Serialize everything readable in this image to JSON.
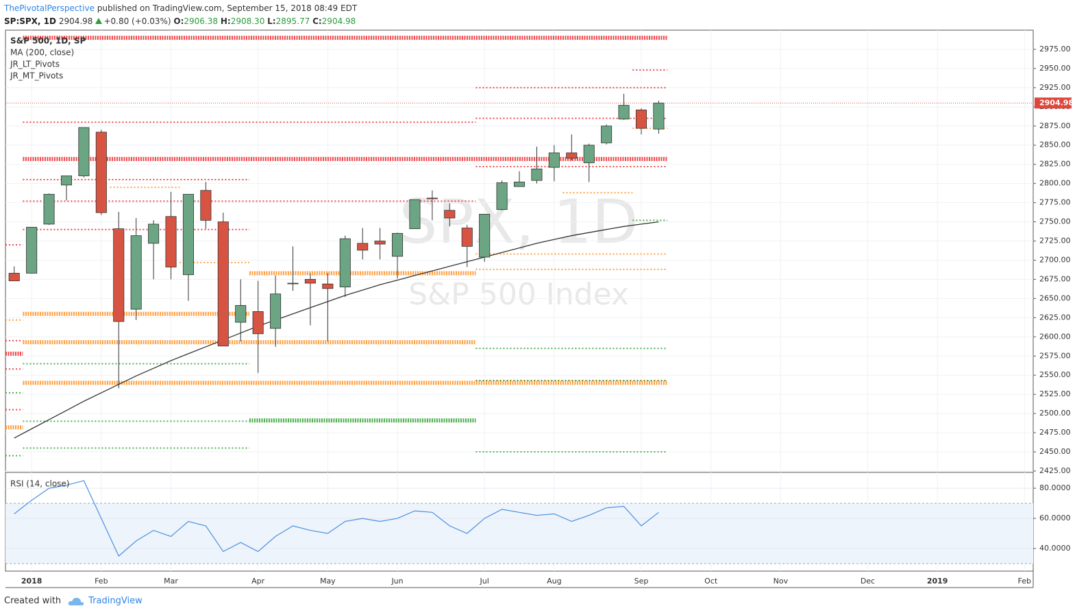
{
  "header": {
    "author": "ThePivotalPerspective",
    "published": "published on TradingView.com, September 15, 2018 08:49 EDT",
    "symbol": "SP:SPX, 1D",
    "last": "2904.98",
    "change": "+0.80 (+0.03%)",
    "open_label": "O:",
    "open": "2906.38",
    "high_label": "H:",
    "high": "2908.30",
    "low_label": "L:",
    "low": "2895.77",
    "close_label": "C:",
    "close": "2904.98"
  },
  "chart_data": {
    "type": "candlestick",
    "legend": [
      "S&P 500, 1D, SP",
      "MA (200, close)",
      "JR_LT_Pivots",
      "JR_MT_Pivots"
    ],
    "watermark": "SPX, 1D",
    "watermark_subtitle": "S&P 500 Index",
    "categories": [
      null,
      "2018",
      null,
      null,
      null,
      "Feb",
      null,
      null,
      null,
      "Mar",
      null,
      null,
      null,
      null,
      "Apr",
      null,
      null,
      null,
      "May",
      null,
      null,
      null,
      "Jun",
      null,
      null,
      null,
      null,
      "Jul",
      null,
      null,
      null,
      "Aug",
      null,
      null,
      null,
      null,
      "Sep",
      null,
      null,
      null,
      "Oct",
      null,
      null,
      null,
      "Nov",
      null,
      null,
      null,
      null,
      "Dec",
      null,
      null,
      null,
      "2019",
      null,
      null,
      null,
      null,
      "Feb"
    ],
    "open": [
      2683,
      2683,
      2747,
      2798,
      2810,
      2867,
      2741,
      2636,
      2722,
      2757,
      2681,
      2791,
      2750,
      2619,
      2633,
      2611,
      2670,
      2675,
      2669,
      2665,
      2722,
      2725,
      2705,
      2741,
      2781,
      2765,
      2742,
      2704,
      2766,
      2796,
      2804,
      2821,
      2840,
      2827,
      2853,
      2884,
      2896,
      2871,
      null,
      null,
      null,
      null,
      null,
      null,
      null,
      null,
      null,
      null,
      null,
      null,
      null,
      null,
      null,
      null,
      null,
      null,
      null,
      null,
      null
    ],
    "high": [
      2692,
      2743,
      2787,
      2810,
      2873,
      2870,
      2763,
      2755,
      2752,
      2789,
      2786,
      2802,
      2762,
      2675,
      2673,
      2680,
      2718,
      2683,
      2683,
      2732,
      2742,
      2742,
      2736,
      2779,
      2791,
      2774,
      2746,
      2760,
      2804,
      2816,
      2848,
      2850,
      2864,
      2852,
      2877,
      2917,
      2898,
      2908,
      null,
      null,
      null,
      null,
      null,
      null,
      null,
      null,
      null,
      null,
      null,
      null,
      null,
      null,
      null,
      null,
      null,
      null,
      null,
      null,
      null
    ],
    "low": [
      2673,
      2683,
      2746,
      2778,
      2808,
      2759,
      2533,
      2622,
      2675,
      2675,
      2647,
      2741,
      2588,
      2594,
      2553,
      2587,
      2660,
      2615,
      2594,
      2652,
      2701,
      2701,
      2676,
      2741,
      2752,
      2744,
      2691,
      2698,
      2765,
      2796,
      2800,
      2803,
      2830,
      2802,
      2851,
      2883,
      2864,
      2865,
      null,
      null,
      null,
      null,
      null,
      null,
      null,
      null,
      null,
      null,
      null,
      null,
      null,
      null,
      null,
      null,
      null,
      null,
      null,
      null,
      null
    ],
    "close": [
      2673,
      2743,
      2786,
      2810,
      2873,
      2762,
      2620,
      2732,
      2747,
      2691,
      2786,
      2752,
      2588,
      2641,
      2604,
      2656,
      2670,
      2670,
      2663,
      2728,
      2713,
      2721,
      2735,
      2779,
      2780,
      2755,
      2718,
      2760,
      2801,
      2802,
      2819,
      2840,
      2833,
      2850,
      2875,
      2902,
      2872,
      2905,
      null,
      null,
      null,
      null,
      null,
      null,
      null,
      null,
      null,
      null,
      null,
      null,
      null,
      null,
      null,
      null,
      null,
      null,
      null,
      null,
      null
    ],
    "up_color": "#6ba583",
    "down_color": "#d75442",
    "ma": {
      "color": "#333333",
      "values": [
        2468,
        2480,
        2492,
        2504,
        2516,
        2527,
        2538,
        2549,
        2559,
        2569,
        2578,
        2587,
        2596,
        2605,
        2614,
        2622,
        2630,
        2638,
        2646,
        2654,
        2661,
        2668,
        2674,
        2680,
        2686,
        2692,
        2698,
        2704,
        2710,
        2716,
        2722,
        2727,
        2732,
        2736,
        2740,
        2744,
        2747,
        2750,
        null,
        null,
        null,
        null,
        null,
        null,
        null,
        null,
        null,
        null,
        null,
        null,
        null,
        null,
        null,
        null,
        null,
        null,
        null,
        null,
        null
      ]
    },
    "last_price": 2904.98,
    "last_price_color": "#e0463b",
    "ylim": [
      2425,
      3000
    ],
    "yticks": [
      {
        "value": 2425,
        "label": "2425.00"
      },
      {
        "value": 2450,
        "label": "2450.00"
      },
      {
        "value": 2475,
        "label": "2475.00"
      },
      {
        "value": 2500,
        "label": "2500.00"
      },
      {
        "value": 2525,
        "label": "2525.00"
      },
      {
        "value": 2550,
        "label": "2550.00"
      },
      {
        "value": 2575,
        "label": "2575.00"
      },
      {
        "value": 2600,
        "label": "2600.00"
      },
      {
        "value": 2625,
        "label": "2625.00"
      },
      {
        "value": 2650,
        "label": "2650.00"
      },
      {
        "value": 2675,
        "label": "2675.00"
      },
      {
        "value": 2700,
        "label": "2700.00"
      },
      {
        "value": 2725,
        "label": "2725.00"
      },
      {
        "value": 2750,
        "label": "2750.00"
      },
      {
        "value": 2775,
        "label": "2775.00"
      },
      {
        "value": 2800,
        "label": "2800.00"
      },
      {
        "value": 2825,
        "label": "2825.00"
      },
      {
        "value": 2850,
        "label": "2850.00"
      },
      {
        "value": 2875,
        "label": "2875.00"
      },
      {
        "value": 2900,
        "label": "2900.00"
      },
      {
        "value": 2925,
        "label": "2925.00"
      },
      {
        "value": 2950,
        "label": "2950.00"
      },
      {
        "value": 2975,
        "label": "2975.00"
      }
    ],
    "grid": true,
    "levels": [
      {
        "value": 2990,
        "x": [
          1,
          37
        ],
        "color": "#f0474a",
        "heavy": true
      },
      {
        "value": 2832,
        "x": [
          1,
          37
        ],
        "color": "#f0474a",
        "heavy": true
      },
      {
        "value": 2880,
        "x": [
          1,
          26
        ],
        "color": "#f0474a",
        "heavy": false
      },
      {
        "value": 2805,
        "x": [
          1,
          13
        ],
        "color": "#f0474a",
        "heavy": false
      },
      {
        "value": 2777,
        "x": [
          1,
          26
        ],
        "color": "#f0474a",
        "heavy": false
      },
      {
        "value": 2740,
        "x": [
          1,
          13
        ],
        "color": "#f0474a",
        "heavy": false
      },
      {
        "value": 2630,
        "x": [
          1,
          13
        ],
        "color": "#ff9f40",
        "heavy": true
      },
      {
        "value": 2593,
        "x": [
          1,
          26
        ],
        "color": "#ff9f40",
        "heavy": true
      },
      {
        "value": 2540,
        "x": [
          1,
          37
        ],
        "color": "#ff9f40",
        "heavy": true
      },
      {
        "value": 2565,
        "x": [
          1,
          13
        ],
        "color": "#4caf50",
        "heavy": false
      },
      {
        "value": 2490,
        "x": [
          1,
          13
        ],
        "color": "#4caf50",
        "heavy": false
      },
      {
        "value": 2455,
        "x": [
          1,
          13
        ],
        "color": "#4caf50",
        "heavy": false
      },
      {
        "value": 2683,
        "x": [
          14,
          26
        ],
        "color": "#ff9f40",
        "heavy": true
      },
      {
        "value": 2491,
        "x": [
          14,
          26
        ],
        "color": "#4caf50",
        "heavy": true
      },
      {
        "value": 2925,
        "x": [
          27,
          37
        ],
        "color": "#f0474a",
        "heavy": false
      },
      {
        "value": 2885,
        "x": [
          27,
          37
        ],
        "color": "#f0474a",
        "heavy": false
      },
      {
        "value": 2822,
        "x": [
          27,
          37
        ],
        "color": "#f0474a",
        "heavy": false
      },
      {
        "value": 2708,
        "x": [
          27,
          37
        ],
        "color": "#ff9f40",
        "heavy": false
      },
      {
        "value": 2688,
        "x": [
          27,
          37
        ],
        "color": "#ff9f40",
        "heavy": false
      },
      {
        "value": 2585,
        "x": [
          27,
          37
        ],
        "color": "#4caf50",
        "heavy": false
      },
      {
        "value": 2543,
        "x": [
          27,
          37
        ],
        "color": "#6b8e23",
        "heavy": false
      },
      {
        "value": 2450,
        "x": [
          27,
          37
        ],
        "color": "#4caf50",
        "heavy": false
      },
      {
        "value": 2720,
        "x": [
          0,
          0
        ],
        "color": "#f0474a",
        "heavy": false
      },
      {
        "value": 2622,
        "x": [
          0,
          0
        ],
        "color": "#ff9f40",
        "heavy": false
      },
      {
        "value": 2595,
        "x": [
          0,
          0
        ],
        "color": "#f0474a",
        "heavy": false
      },
      {
        "value": 2578,
        "x": [
          0,
          0
        ],
        "color": "#f0474a",
        "heavy": true
      },
      {
        "value": 2558,
        "x": [
          0,
          0
        ],
        "color": "#f0474a",
        "heavy": false
      },
      {
        "value": 2527,
        "x": [
          0,
          0
        ],
        "color": "#4caf50",
        "heavy": false
      },
      {
        "value": 2505,
        "x": [
          0,
          0
        ],
        "color": "#f0474a",
        "heavy": false
      },
      {
        "value": 2482,
        "x": [
          0,
          0
        ],
        "color": "#ff9f40",
        "heavy": true
      },
      {
        "value": 2445,
        "x": [
          0,
          0
        ],
        "color": "#4caf50",
        "heavy": false
      },
      {
        "value": 2795,
        "x": [
          6,
          9
        ],
        "color": "#ff9f40",
        "heavy": false
      },
      {
        "value": 2697,
        "x": [
          10,
          13
        ],
        "color": "#ff9f40",
        "heavy": false
      },
      {
        "value": 2788,
        "x": [
          32,
          35
        ],
        "color": "#ff9f40",
        "heavy": false
      },
      {
        "value": 2948,
        "x": [
          36,
          37
        ],
        "color": "#f0474a",
        "heavy": false
      },
      {
        "value": 2872,
        "x": [
          36,
          37
        ],
        "color": "#ff9f40",
        "heavy": false
      },
      {
        "value": 2752,
        "x": [
          36,
          37
        ],
        "color": "#4caf50",
        "heavy": false
      }
    ],
    "rsi": {
      "title": "RSI (14, close)",
      "color": "#4a8fe0",
      "values": [
        63,
        72,
        80,
        82,
        85,
        60,
        35,
        45,
        52,
        48,
        58,
        55,
        38,
        44,
        38,
        48,
        55,
        52,
        50,
        58,
        60,
        58,
        60,
        65,
        64,
        55,
        50,
        60,
        66,
        64,
        62,
        63,
        58,
        62,
        67,
        68,
        55,
        64,
        null,
        null,
        null,
        null,
        null,
        null,
        null,
        null,
        null,
        null,
        null,
        null,
        null,
        null,
        null,
        null,
        null,
        null,
        null,
        null,
        null
      ],
      "ylim": [
        25,
        90.5
      ],
      "yticks": [
        {
          "value": 80,
          "label": "80.0000"
        },
        {
          "value": 60,
          "label": "60.0000"
        },
        {
          "value": 40,
          "label": "40.0000"
        }
      ],
      "band": [
        30,
        70
      ]
    }
  },
  "footer": {
    "text": "Created with",
    "brand": "TradingView"
  }
}
